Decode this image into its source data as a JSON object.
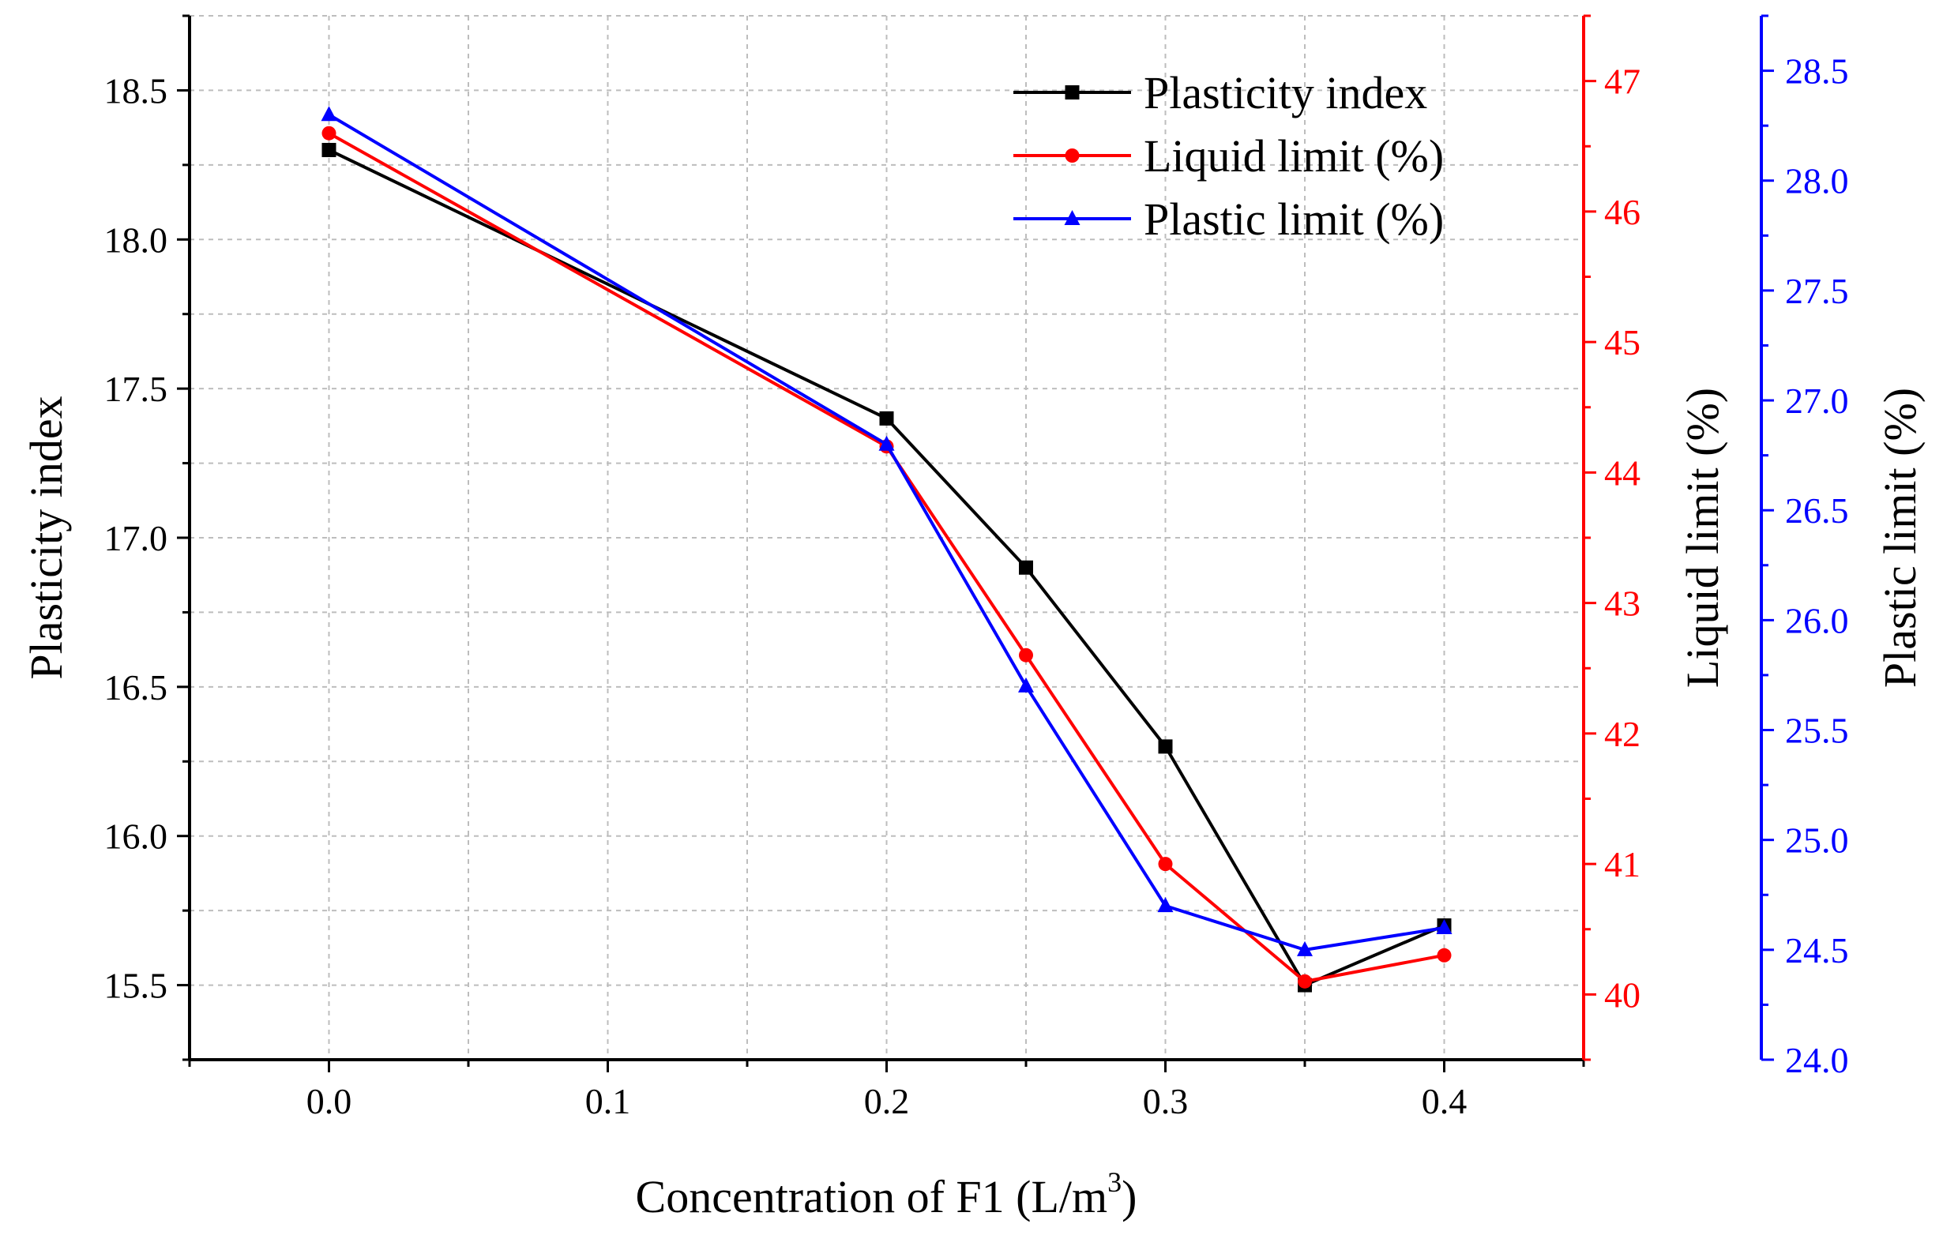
{
  "chart_data": {
    "type": "line",
    "x": [
      0.0,
      0.2,
      0.25,
      0.3,
      0.35,
      0.4
    ],
    "xlim": [
      -0.05,
      0.45
    ],
    "xticks": [
      "0.0",
      "0.1",
      "0.2",
      "0.3",
      "0.4"
    ],
    "xtick_values": [
      0.0,
      0.1,
      0.2,
      0.3,
      0.4
    ],
    "xlabel": "Concentration of F1 (L/m",
    "xlabel_sup": "3",
    "xlabel_end": ")",
    "grid": true,
    "legend_position": "top-right",
    "axes": {
      "left": {
        "label": "Plasticity index",
        "ylim": [
          15.25,
          18.75
        ],
        "ticks": [
          "15.5",
          "16.0",
          "16.5",
          "17.0",
          "17.5",
          "18.0",
          "18.5"
        ],
        "tick_values": [
          15.5,
          16.0,
          16.5,
          17.0,
          17.5,
          18.0,
          18.5
        ],
        "color": "#000000"
      },
      "right1": {
        "label": "Liquid limit (%)",
        "ylim": [
          39.5,
          47.5
        ],
        "ticks": [
          "40",
          "41",
          "42",
          "43",
          "44",
          "45",
          "46",
          "47"
        ],
        "tick_values": [
          40,
          41,
          42,
          43,
          44,
          45,
          46,
          47
        ],
        "color": "#ff0000"
      },
      "right2": {
        "label": "Plastic limit (%)",
        "ylim": [
          24.0,
          28.75
        ],
        "ticks": [
          "24.0",
          "24.5",
          "25.0",
          "25.5",
          "26.0",
          "26.5",
          "27.0",
          "27.5",
          "28.0",
          "28.5"
        ],
        "tick_values": [
          24.0,
          24.5,
          25.0,
          25.5,
          26.0,
          26.5,
          27.0,
          27.5,
          28.0,
          28.5
        ],
        "color": "#0000ff"
      }
    },
    "series": [
      {
        "name": "Plasticity index",
        "axis": "left",
        "marker": "square",
        "color": "#000000",
        "values": [
          18.3,
          17.4,
          16.9,
          16.3,
          15.5,
          15.7
        ]
      },
      {
        "name": "Liquid limit (%)",
        "axis": "right1",
        "marker": "circle",
        "color": "#ff0000",
        "values": [
          46.6,
          44.2,
          42.6,
          41.0,
          40.1,
          40.3
        ]
      },
      {
        "name": "Plastic limit (%)",
        "axis": "right2",
        "marker": "triangle",
        "color": "#0000ff",
        "values": [
          28.3,
          26.8,
          25.7,
          24.7,
          24.5,
          24.6
        ]
      }
    ]
  }
}
